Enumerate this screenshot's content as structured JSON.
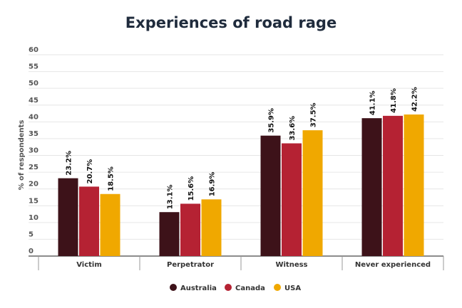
{
  "chart_data": {
    "type": "bar",
    "title": "Experiences of road rage",
    "ylabel": "% of respondents",
    "xlabel": "",
    "ylim": [
      0,
      60
    ],
    "yticks": [
      0,
      5,
      10,
      15,
      20,
      25,
      30,
      35,
      40,
      45,
      50,
      55,
      60
    ],
    "grid": true,
    "legend_position": "bottom",
    "categories": [
      "Victim",
      "Perpetrator",
      "Witness",
      "Never experienced"
    ],
    "series": [
      {
        "name": "Australia",
        "color": "#3d1219",
        "values": [
          23.2,
          13.1,
          35.9,
          41.1
        ],
        "labels": [
          "23.2%",
          "13.1%",
          "35.9%",
          "41.1%"
        ]
      },
      {
        "name": "Canada",
        "color": "#b52233",
        "values": [
          20.7,
          15.6,
          33.6,
          41.8
        ],
        "labels": [
          "20.7%",
          "15.6%",
          "33.6%",
          "41.8%"
        ]
      },
      {
        "name": "USA",
        "color": "#f0a800",
        "values": [
          18.5,
          16.9,
          37.5,
          42.2
        ],
        "labels": [
          "18.5%",
          "16.9%",
          "37.5%",
          "42.2%"
        ]
      }
    ]
  }
}
